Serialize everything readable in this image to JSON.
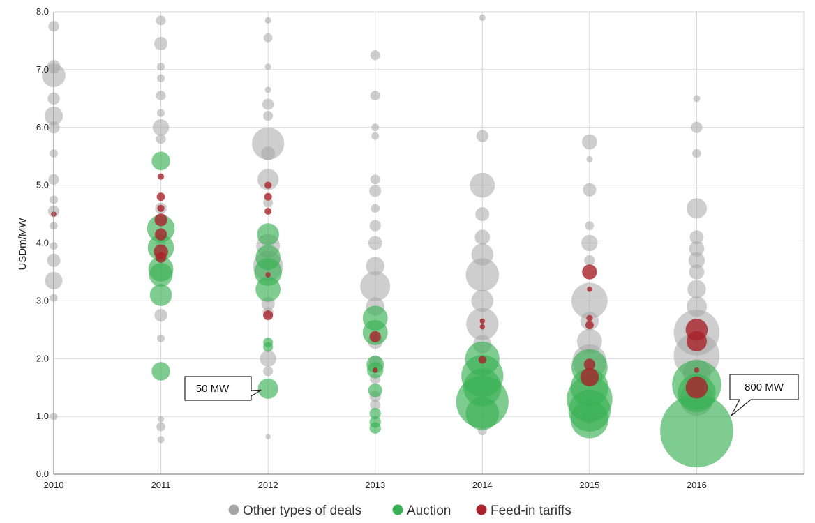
{
  "chart_data": {
    "type": "scatter",
    "subtype": "bubble",
    "title": "",
    "xlabel": "",
    "ylabel": "USDm/MW",
    "xlim": [
      2010,
      2017
    ],
    "ylim": [
      0,
      8
    ],
    "x_ticks": [
      {
        "value": 2010,
        "label": "2010"
      },
      {
        "value": 2011,
        "label": "2011"
      },
      {
        "value": 2012,
        "label": "2012"
      },
      {
        "value": 2013,
        "label": "2013"
      },
      {
        "value": 2014,
        "label": "2014"
      },
      {
        "value": 2015,
        "label": "2015"
      },
      {
        "value": 2016,
        "label": "2016"
      }
    ],
    "y_ticks": [
      {
        "value": 0,
        "label": "0.0"
      },
      {
        "value": 1,
        "label": "1.0"
      },
      {
        "value": 2,
        "label": "2.0"
      },
      {
        "value": 3,
        "label": "3.0"
      },
      {
        "value": 4,
        "label": "4.0"
      },
      {
        "value": 5,
        "label": "5.0"
      },
      {
        "value": 6,
        "label": "6.0"
      },
      {
        "value": 7,
        "label": "7.0"
      },
      {
        "value": 8,
        "label": "8.0"
      }
    ],
    "grid": true,
    "legend_position": "bottom",
    "colors": {
      "other": "#a6a6a6",
      "auction": "#3ab054",
      "fit": "#a8232a",
      "grid": "#d4d4d4",
      "axis": "#8c8c8c"
    },
    "legend": [
      {
        "key": "other",
        "label": "Other types of deals"
      },
      {
        "key": "auction",
        "label": "Auction"
      },
      {
        "key": "fit",
        "label": "Feed-in tariffs"
      }
    ],
    "annotations": [
      {
        "text": "50 MW",
        "x": 2012,
        "y": 1.48,
        "mw": 50
      },
      {
        "text": "800 MW",
        "x": 2016,
        "y": 0.75,
        "mw": 800
      }
    ],
    "series": [
      {
        "name": "Other types of deals",
        "key": "other",
        "points": [
          {
            "x": 2010,
            "y": 7.75,
            "mw": 10
          },
          {
            "x": 2010,
            "y": 7.05,
            "mw": 18
          },
          {
            "x": 2010,
            "y": 6.9,
            "mw": 70
          },
          {
            "x": 2010,
            "y": 6.5,
            "mw": 14
          },
          {
            "x": 2010,
            "y": 6.2,
            "mw": 40
          },
          {
            "x": 2010,
            "y": 6.0,
            "mw": 14
          },
          {
            "x": 2010,
            "y": 5.55,
            "mw": 5
          },
          {
            "x": 2010,
            "y": 5.1,
            "mw": 10
          },
          {
            "x": 2010,
            "y": 4.75,
            "mw": 5
          },
          {
            "x": 2010,
            "y": 4.55,
            "mw": 12
          },
          {
            "x": 2010,
            "y": 4.3,
            "mw": 4
          },
          {
            "x": 2010,
            "y": 3.95,
            "mw": 4
          },
          {
            "x": 2010,
            "y": 3.7,
            "mw": 18
          },
          {
            "x": 2010,
            "y": 3.35,
            "mw": 35
          },
          {
            "x": 2010,
            "y": 3.05,
            "mw": 4
          },
          {
            "x": 2010,
            "y": 1.0,
            "mw": 4
          },
          {
            "x": 2011,
            "y": 7.85,
            "mw": 8
          },
          {
            "x": 2011,
            "y": 7.45,
            "mw": 18
          },
          {
            "x": 2011,
            "y": 7.05,
            "mw": 4
          },
          {
            "x": 2011,
            "y": 6.85,
            "mw": 4
          },
          {
            "x": 2011,
            "y": 6.55,
            "mw": 8
          },
          {
            "x": 2011,
            "y": 6.25,
            "mw": 4
          },
          {
            "x": 2011,
            "y": 6.0,
            "mw": 30
          },
          {
            "x": 2011,
            "y": 5.8,
            "mw": 8
          },
          {
            "x": 2011,
            "y": 4.6,
            "mw": 12
          },
          {
            "x": 2011,
            "y": 4.0,
            "mw": 6
          },
          {
            "x": 2011,
            "y": 2.75,
            "mw": 16
          },
          {
            "x": 2011,
            "y": 2.35,
            "mw": 4
          },
          {
            "x": 2011,
            "y": 0.95,
            "mw": 2
          },
          {
            "x": 2011,
            "y": 0.82,
            "mw": 6
          },
          {
            "x": 2011,
            "y": 0.6,
            "mw": 3
          },
          {
            "x": 2012,
            "y": 7.85,
            "mw": 2
          },
          {
            "x": 2012,
            "y": 7.55,
            "mw": 6
          },
          {
            "x": 2012,
            "y": 7.05,
            "mw": 2
          },
          {
            "x": 2012,
            "y": 6.65,
            "mw": 2
          },
          {
            "x": 2012,
            "y": 6.4,
            "mw": 12
          },
          {
            "x": 2012,
            "y": 6.2,
            "mw": 8
          },
          {
            "x": 2012,
            "y": 5.72,
            "mw": 140
          },
          {
            "x": 2012,
            "y": 5.55,
            "mw": 20
          },
          {
            "x": 2012,
            "y": 5.1,
            "mw": 55
          },
          {
            "x": 2012,
            "y": 4.7,
            "mw": 8
          },
          {
            "x": 2012,
            "y": 3.95,
            "mw": 70
          },
          {
            "x": 2012,
            "y": 3.6,
            "mw": 120
          },
          {
            "x": 2012,
            "y": 2.95,
            "mw": 18
          },
          {
            "x": 2012,
            "y": 2.8,
            "mw": 10
          },
          {
            "x": 2012,
            "y": 2.0,
            "mw": 30
          },
          {
            "x": 2012,
            "y": 1.78,
            "mw": 8
          },
          {
            "x": 2012,
            "y": 0.65,
            "mw": 1
          },
          {
            "x": 2013,
            "y": 7.25,
            "mw": 8
          },
          {
            "x": 2013,
            "y": 6.55,
            "mw": 8
          },
          {
            "x": 2013,
            "y": 6.0,
            "mw": 4
          },
          {
            "x": 2013,
            "y": 5.85,
            "mw": 4
          },
          {
            "x": 2013,
            "y": 5.1,
            "mw": 8
          },
          {
            "x": 2013,
            "y": 4.9,
            "mw": 14
          },
          {
            "x": 2013,
            "y": 4.6,
            "mw": 6
          },
          {
            "x": 2013,
            "y": 4.3,
            "mw": 12
          },
          {
            "x": 2013,
            "y": 4.0,
            "mw": 20
          },
          {
            "x": 2013,
            "y": 3.6,
            "mw": 40
          },
          {
            "x": 2013,
            "y": 3.25,
            "mw": 120
          },
          {
            "x": 2013,
            "y": 2.9,
            "mw": 40
          },
          {
            "x": 2013,
            "y": 2.3,
            "mw": 25
          },
          {
            "x": 2013,
            "y": 1.95,
            "mw": 14
          },
          {
            "x": 2013,
            "y": 1.65,
            "mw": 10
          },
          {
            "x": 2013,
            "y": 1.35,
            "mw": 12
          },
          {
            "x": 2013,
            "y": 1.2,
            "mw": 10
          },
          {
            "x": 2014,
            "y": 7.9,
            "mw": 2
          },
          {
            "x": 2014,
            "y": 5.85,
            "mw": 14
          },
          {
            "x": 2014,
            "y": 5.0,
            "mw": 80
          },
          {
            "x": 2014,
            "y": 4.5,
            "mw": 20
          },
          {
            "x": 2014,
            "y": 4.1,
            "mw": 25
          },
          {
            "x": 2014,
            "y": 3.8,
            "mw": 60
          },
          {
            "x": 2014,
            "y": 3.45,
            "mw": 150
          },
          {
            "x": 2014,
            "y": 3.0,
            "mw": 60
          },
          {
            "x": 2014,
            "y": 2.6,
            "mw": 140
          },
          {
            "x": 2014,
            "y": 2.25,
            "mw": 40
          },
          {
            "x": 2014,
            "y": 0.75,
            "mw": 6
          },
          {
            "x": 2015,
            "y": 5.75,
            "mw": 25
          },
          {
            "x": 2015,
            "y": 5.45,
            "mw": 2
          },
          {
            "x": 2015,
            "y": 4.92,
            "mw": 18
          },
          {
            "x": 2015,
            "y": 4.3,
            "mw": 6
          },
          {
            "x": 2015,
            "y": 4.0,
            "mw": 30
          },
          {
            "x": 2015,
            "y": 3.7,
            "mw": 10
          },
          {
            "x": 2015,
            "y": 3.0,
            "mw": 180
          },
          {
            "x": 2015,
            "y": 2.65,
            "mw": 40
          },
          {
            "x": 2015,
            "y": 2.3,
            "mw": 80
          },
          {
            "x": 2015,
            "y": 1.95,
            "mw": 160
          },
          {
            "x": 2015,
            "y": 1.0,
            "mw": 25
          },
          {
            "x": 2016,
            "y": 6.5,
            "mw": 3
          },
          {
            "x": 2016,
            "y": 6.0,
            "mw": 12
          },
          {
            "x": 2016,
            "y": 5.55,
            "mw": 6
          },
          {
            "x": 2016,
            "y": 4.6,
            "mw": 50
          },
          {
            "x": 2016,
            "y": 4.1,
            "mw": 20
          },
          {
            "x": 2016,
            "y": 3.9,
            "mw": 25
          },
          {
            "x": 2016,
            "y": 3.7,
            "mw": 30
          },
          {
            "x": 2016,
            "y": 3.5,
            "mw": 25
          },
          {
            "x": 2016,
            "y": 3.2,
            "mw": 40
          },
          {
            "x": 2016,
            "y": 2.9,
            "mw": 50
          },
          {
            "x": 2016,
            "y": 2.45,
            "mw": 300
          },
          {
            "x": 2016,
            "y": 2.05,
            "mw": 300
          },
          {
            "x": 2016,
            "y": 1.75,
            "mw": 100
          },
          {
            "x": 2016,
            "y": 1.3,
            "mw": 150
          }
        ]
      },
      {
        "name": "Auction",
        "key": "auction",
        "points": [
          {
            "x": 2011,
            "y": 5.42,
            "mw": 40
          },
          {
            "x": 2011,
            "y": 4.25,
            "mw": 100
          },
          {
            "x": 2011,
            "y": 3.92,
            "mw": 90
          },
          {
            "x": 2011,
            "y": 3.55,
            "mw": 80
          },
          {
            "x": 2011,
            "y": 3.45,
            "mw": 70
          },
          {
            "x": 2011,
            "y": 3.1,
            "mw": 60
          },
          {
            "x": 2011,
            "y": 1.78,
            "mw": 40
          },
          {
            "x": 2012,
            "y": 4.15,
            "mw": 60
          },
          {
            "x": 2012,
            "y": 3.75,
            "mw": 80
          },
          {
            "x": 2012,
            "y": 3.5,
            "mw": 100
          },
          {
            "x": 2012,
            "y": 3.2,
            "mw": 80
          },
          {
            "x": 2012,
            "y": 2.28,
            "mw": 8
          },
          {
            "x": 2012,
            "y": 2.2,
            "mw": 8
          },
          {
            "x": 2012,
            "y": 1.48,
            "mw": 50
          },
          {
            "x": 2013,
            "y": 2.7,
            "mw": 80
          },
          {
            "x": 2013,
            "y": 2.45,
            "mw": 80
          },
          {
            "x": 2013,
            "y": 1.9,
            "mw": 35
          },
          {
            "x": 2013,
            "y": 1.8,
            "mw": 30
          },
          {
            "x": 2013,
            "y": 1.45,
            "mw": 20
          },
          {
            "x": 2013,
            "y": 1.05,
            "mw": 12
          },
          {
            "x": 2013,
            "y": 0.9,
            "mw": 12
          },
          {
            "x": 2013,
            "y": 0.8,
            "mw": 12
          },
          {
            "x": 2014,
            "y": 2.0,
            "mw": 160
          },
          {
            "x": 2014,
            "y": 1.7,
            "mw": 250
          },
          {
            "x": 2014,
            "y": 1.5,
            "mw": 200
          },
          {
            "x": 2014,
            "y": 1.25,
            "mw": 400
          },
          {
            "x": 2014,
            "y": 1.05,
            "mw": 150
          },
          {
            "x": 2015,
            "y": 1.85,
            "mw": 180
          },
          {
            "x": 2015,
            "y": 1.5,
            "mw": 200
          },
          {
            "x": 2015,
            "y": 1.3,
            "mw": 300
          },
          {
            "x": 2015,
            "y": 1.1,
            "mw": 250
          },
          {
            "x": 2015,
            "y": 0.95,
            "mw": 200
          },
          {
            "x": 2016,
            "y": 1.55,
            "mw": 350
          },
          {
            "x": 2016,
            "y": 1.4,
            "mw": 200
          },
          {
            "x": 2016,
            "y": 0.75,
            "mw": 800
          }
        ]
      },
      {
        "name": "Feed-in tariffs",
        "key": "fit",
        "points": [
          {
            "x": 2010,
            "y": 4.5,
            "mw": 1
          },
          {
            "x": 2011,
            "y": 5.15,
            "mw": 2
          },
          {
            "x": 2011,
            "y": 4.8,
            "mw": 5
          },
          {
            "x": 2011,
            "y": 4.6,
            "mw": 3
          },
          {
            "x": 2011,
            "y": 4.4,
            "mw": 16
          },
          {
            "x": 2011,
            "y": 4.15,
            "mw": 14
          },
          {
            "x": 2011,
            "y": 3.85,
            "mw": 22
          },
          {
            "x": 2011,
            "y": 3.75,
            "mw": 10
          },
          {
            "x": 2012,
            "y": 5.0,
            "mw": 3
          },
          {
            "x": 2012,
            "y": 4.8,
            "mw": 4
          },
          {
            "x": 2012,
            "y": 4.55,
            "mw": 3
          },
          {
            "x": 2012,
            "y": 3.45,
            "mw": 1
          },
          {
            "x": 2012,
            "y": 2.75,
            "mw": 8
          },
          {
            "x": 2013,
            "y": 2.38,
            "mw": 12
          },
          {
            "x": 2013,
            "y": 1.8,
            "mw": 1
          },
          {
            "x": 2014,
            "y": 2.65,
            "mw": 1
          },
          {
            "x": 2014,
            "y": 2.55,
            "mw": 1
          },
          {
            "x": 2014,
            "y": 1.98,
            "mw": 4
          },
          {
            "x": 2015,
            "y": 3.5,
            "mw": 24
          },
          {
            "x": 2015,
            "y": 3.2,
            "mw": 1
          },
          {
            "x": 2015,
            "y": 2.7,
            "mw": 2
          },
          {
            "x": 2015,
            "y": 2.58,
            "mw": 5
          },
          {
            "x": 2015,
            "y": 1.9,
            "mw": 12
          },
          {
            "x": 2015,
            "y": 1.68,
            "mw": 40
          },
          {
            "x": 2016,
            "y": 2.5,
            "mw": 60
          },
          {
            "x": 2016,
            "y": 2.3,
            "mw": 50
          },
          {
            "x": 2016,
            "y": 1.8,
            "mw": 1
          },
          {
            "x": 2016,
            "y": 1.5,
            "mw": 60
          }
        ]
      }
    ]
  }
}
